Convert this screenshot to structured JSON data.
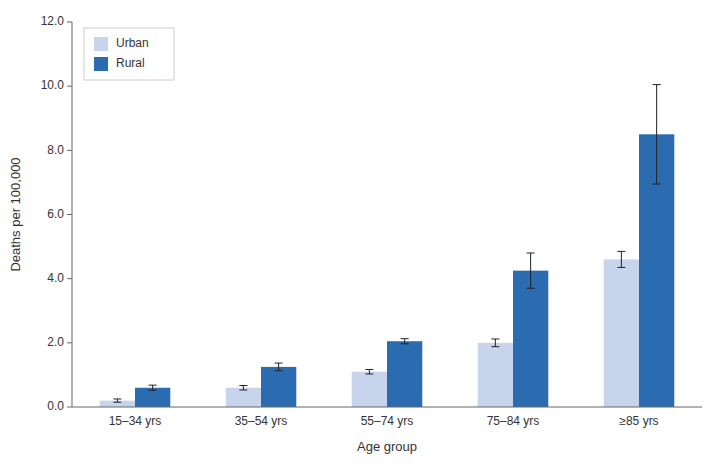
{
  "chart_data": {
    "type": "bar",
    "xlabel": "Age group",
    "ylabel": "Deaths per 100,000",
    "categories": [
      "15–34 yrs",
      "35–54 yrs",
      "55–74 yrs",
      "75–84 yrs",
      "≥85 yrs"
    ],
    "series": [
      {
        "name": "Urban",
        "color": "#c8d4ec",
        "values": [
          0.2,
          0.6,
          1.1,
          2.0,
          4.6
        ],
        "error_low": [
          0.05,
          0.07,
          0.07,
          0.12,
          0.25
        ],
        "error_high": [
          0.05,
          0.07,
          0.07,
          0.12,
          0.25
        ]
      },
      {
        "name": "Rural",
        "color": "#2b6cb0",
        "values": [
          0.6,
          1.25,
          2.05,
          4.25,
          8.5
        ],
        "error_low": [
          0.08,
          0.12,
          0.08,
          0.55,
          1.55
        ],
        "error_high": [
          0.08,
          0.12,
          0.08,
          0.55,
          1.55
        ]
      }
    ],
    "ylim": [
      0,
      12.0
    ],
    "yticks": [
      {
        "value": 0.0,
        "label": "0.0"
      },
      {
        "value": 2.0,
        "label": "2.0"
      },
      {
        "value": 4.0,
        "label": "4.0"
      },
      {
        "value": 6.0,
        "label": "6.0"
      },
      {
        "value": 8.0,
        "label": "8.0"
      },
      {
        "value": 10.0,
        "label": "10.0"
      },
      {
        "value": 12.0,
        "label": "12.0"
      }
    ],
    "grid": false,
    "legend": "upper left"
  }
}
